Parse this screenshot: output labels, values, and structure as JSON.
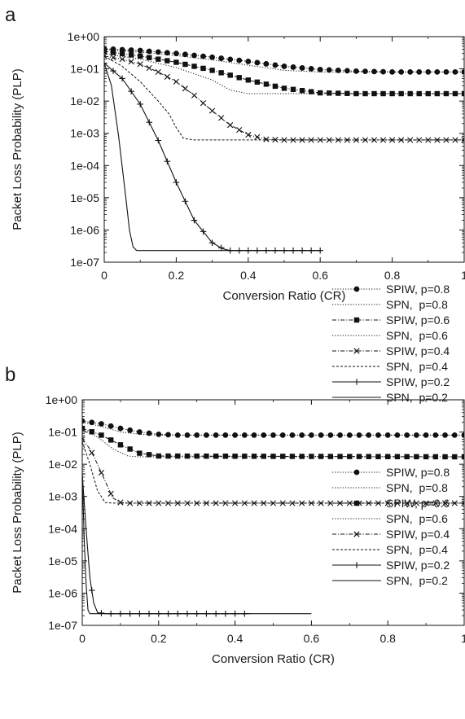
{
  "chart_data": [
    {
      "type": "line",
      "panel_label": "a",
      "xlabel": "Conversion Ratio (CR)",
      "ylabel": "Packet Loss Probability (PLP)",
      "xlim": [
        0,
        1
      ],
      "ylim": [
        1e-07,
        1
      ],
      "y_scale": "log",
      "x_ticks": [
        "0",
        "0.2",
        "0.4",
        "0.6",
        "0.8",
        "1"
      ],
      "y_ticks": [
        "1e-07",
        "1e-06",
        "1e-05",
        "1e-04",
        "1e-03",
        "1e-02",
        "1e-01",
        "1e+00"
      ],
      "grid": false,
      "legend_position": "bottom-right",
      "series": [
        {
          "name": "SPIW, p=0.8",
          "line": "dotted",
          "marker": "circle",
          "x": [
            0,
            0.1,
            0.2,
            0.3,
            0.4,
            0.5,
            0.6,
            0.7,
            0.8,
            1.0
          ],
          "y": [
            0.42,
            0.37,
            0.3,
            0.23,
            0.17,
            0.12,
            0.095,
            0.085,
            0.08,
            0.08
          ]
        },
        {
          "name": "SPN,  p=0.8",
          "line": "dotted",
          "marker": "none",
          "x": [
            0,
            0.1,
            0.2,
            0.3,
            0.4,
            0.5,
            0.6,
            0.7,
            0.8,
            1.0
          ],
          "y": [
            0.4,
            0.33,
            0.26,
            0.19,
            0.13,
            0.09,
            0.08,
            0.08,
            0.08,
            0.08
          ]
        },
        {
          "name": "SPIW, p=0.6",
          "line": "dash-dot",
          "marker": "square",
          "x": [
            0,
            0.1,
            0.2,
            0.3,
            0.4,
            0.5,
            0.6,
            0.7,
            1.0
          ],
          "y": [
            0.35,
            0.25,
            0.16,
            0.09,
            0.045,
            0.025,
            0.018,
            0.017,
            0.017
          ]
        },
        {
          "name": "SPN,  p=0.6",
          "line": "dotted",
          "marker": "none",
          "x": [
            0,
            0.1,
            0.2,
            0.3,
            0.35,
            0.4,
            0.5,
            1.0
          ],
          "y": [
            0.3,
            0.2,
            0.11,
            0.045,
            0.022,
            0.017,
            0.017,
            0.017
          ]
        },
        {
          "name": "SPIW, p=0.4",
          "line": "dash-dot",
          "marker": "cross",
          "x": [
            0,
            0.05,
            0.1,
            0.15,
            0.2,
            0.25,
            0.3,
            0.35,
            0.4,
            0.45,
            0.5,
            1.0
          ],
          "y": [
            0.25,
            0.2,
            0.14,
            0.08,
            0.04,
            0.015,
            0.005,
            0.0018,
            0.0009,
            0.00065,
            0.00062,
            0.00062
          ]
        },
        {
          "name": "SPN,  p=0.4",
          "line": "dashed",
          "marker": "none",
          "x": [
            0,
            0.05,
            0.1,
            0.15,
            0.18,
            0.2,
            0.22,
            0.25,
            1.0
          ],
          "y": [
            0.25,
            0.12,
            0.04,
            0.01,
            0.004,
            0.0015,
            0.0007,
            0.00062,
            0.00062
          ]
        },
        {
          "name": "SPIW, p=0.2",
          "line": "solid",
          "marker": "plus",
          "x": [
            0,
            0.05,
            0.1,
            0.15,
            0.2,
            0.25,
            0.3,
            0.33,
            0.35,
            0.4,
            0.6
          ],
          "y": [
            0.15,
            0.05,
            0.008,
            0.0006,
            3e-05,
            2e-06,
            4e-07,
            2.6e-07,
            2.3e-07,
            2.3e-07,
            2.3e-07
          ]
        },
        {
          "name": "SPN,  p=0.2",
          "line": "solid",
          "marker": "none",
          "x": [
            0,
            0.02,
            0.04,
            0.06,
            0.07,
            0.08,
            0.09,
            0.1,
            0.6
          ],
          "y": [
            0.15,
            0.03,
            0.0008,
            1e-05,
            1e-06,
            3e-07,
            2.3e-07,
            2.3e-07,
            2.3e-07
          ]
        }
      ]
    },
    {
      "type": "line",
      "panel_label": "b",
      "xlabel": "Conversion Ratio (CR)",
      "ylabel": "Packet Loss Probability (PLP)",
      "xlim": [
        0,
        1
      ],
      "ylim": [
        1e-07,
        1
      ],
      "y_scale": "log",
      "x_ticks": [
        "0",
        "0.2",
        "0.4",
        "0.6",
        "0.8",
        "1"
      ],
      "y_ticks": [
        "1e-07",
        "1e-06",
        "1e-05",
        "1e-04",
        "1e-03",
        "1e-02",
        "1e-01",
        "1e+00"
      ],
      "grid": false,
      "legend_position": "bottom-right",
      "series": [
        {
          "name": "SPIW, p=0.8",
          "line": "dotted",
          "marker": "circle",
          "x": [
            0,
            0.05,
            0.1,
            0.15,
            0.2,
            0.25,
            0.3,
            1.0
          ],
          "y": [
            0.22,
            0.18,
            0.13,
            0.1,
            0.085,
            0.08,
            0.08,
            0.08
          ]
        },
        {
          "name": "SPN,  p=0.8",
          "line": "dotted",
          "marker": "none",
          "x": [
            0,
            0.05,
            0.1,
            0.15,
            0.2,
            1.0
          ],
          "y": [
            0.2,
            0.15,
            0.1,
            0.085,
            0.08,
            0.08
          ]
        },
        {
          "name": "SPIW, p=0.6",
          "line": "dash-dot",
          "marker": "square",
          "x": [
            0,
            0.05,
            0.1,
            0.15,
            0.2,
            1.0
          ],
          "y": [
            0.13,
            0.08,
            0.04,
            0.022,
            0.018,
            0.017
          ]
        },
        {
          "name": "SPN,  p=0.6",
          "line": "dotted",
          "marker": "none",
          "x": [
            0,
            0.04,
            0.08,
            0.12,
            0.15,
            1.0
          ],
          "y": [
            0.12,
            0.07,
            0.03,
            0.018,
            0.017,
            0.017
          ]
        },
        {
          "name": "SPIW, p=0.4",
          "line": "dash-dot",
          "marker": "cross",
          "x": [
            0,
            0.02,
            0.04,
            0.06,
            0.08,
            0.1,
            0.12,
            1.0
          ],
          "y": [
            0.06,
            0.03,
            0.01,
            0.003,
            0.0009,
            0.00065,
            0.00062,
            0.00062
          ]
        },
        {
          "name": "SPN,  p=0.4",
          "line": "dashed",
          "marker": "none",
          "x": [
            0,
            0.02,
            0.04,
            0.06,
            0.08,
            1.0
          ],
          "y": [
            0.05,
            0.01,
            0.0015,
            0.00065,
            0.00062,
            0.00062
          ]
        },
        {
          "name": "SPIW, p=0.2",
          "line": "solid",
          "marker": "plus",
          "x": [
            0,
            0.01,
            0.02,
            0.03,
            0.04,
            0.06,
            0.44
          ],
          "y": [
            0.005,
            0.0001,
            3e-06,
            5e-07,
            2.5e-07,
            2.3e-07,
            2.3e-07
          ]
        },
        {
          "name": "SPN,  p=0.2",
          "line": "solid",
          "marker": "none",
          "x": [
            0,
            0.005,
            0.01,
            0.015,
            0.02,
            0.6
          ],
          "y": [
            0.005,
            5e-05,
            2e-06,
            3e-07,
            2.3e-07,
            2.3e-07
          ]
        }
      ]
    }
  ]
}
